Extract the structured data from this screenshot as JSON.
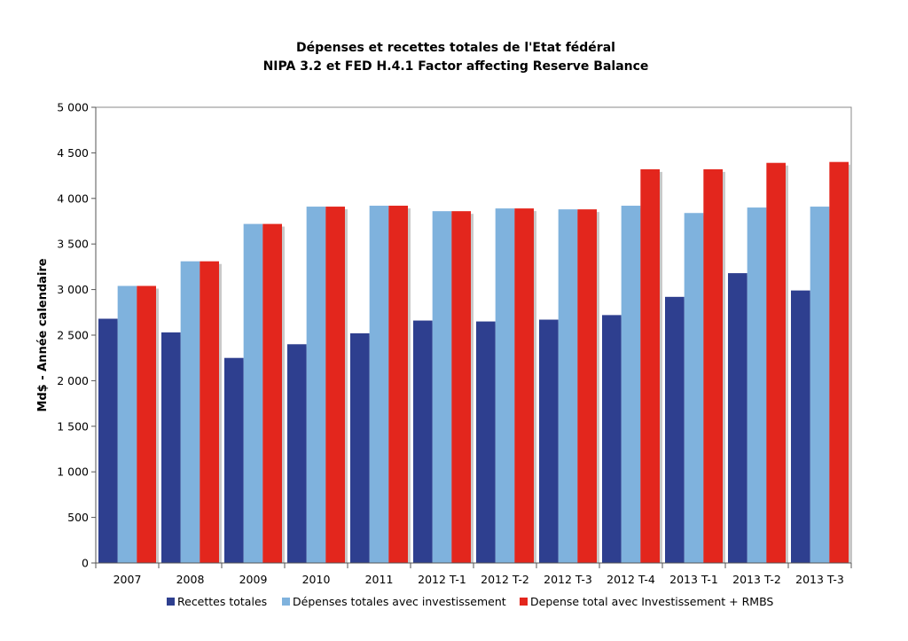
{
  "chart_data": {
    "type": "bar",
    "title": "Dépenses et recettes totales de l'Etat fédéral",
    "subtitle": "NIPA 3.2 et FED H.4.1 Factor affecting Reserve Balance",
    "xlabel": "",
    "ylabel": "Md$ - Année calendaire",
    "ylim": [
      0,
      5000
    ],
    "yticks": [
      0,
      500,
      1000,
      1500,
      2000,
      2500,
      3000,
      3500,
      4000,
      4500,
      5000
    ],
    "ytick_labels": [
      "0",
      "500",
      "1 000",
      "1 500",
      "2 000",
      "2 500",
      "3 000",
      "3 500",
      "4 000",
      "4 500",
      "5 000"
    ],
    "grid": false,
    "legend_position": "bottom",
    "categories": [
      "2007",
      "2008",
      "2009",
      "2010",
      "2011",
      "2012 T-1",
      "2012 T-2",
      "2012 T-3",
      "2012 T-4",
      "2013 T-1",
      "2013 T-2",
      "2013 T-3"
    ],
    "series": [
      {
        "name": "Recettes totales",
        "color": "#2e3f8f",
        "values": [
          2680,
          2530,
          2250,
          2400,
          2520,
          2660,
          2650,
          2670,
          2720,
          2920,
          3180,
          2990
        ]
      },
      {
        "name": "Dépenses totales avec investissement",
        "color": "#7fb2dd",
        "values": [
          3040,
          3310,
          3720,
          3910,
          3920,
          3860,
          3890,
          3880,
          3920,
          3840,
          3900,
          3910
        ]
      },
      {
        "name": "Depense total avec Investissement + RMBS",
        "color": "#e3261d",
        "values": [
          3040,
          3310,
          3720,
          3910,
          3920,
          3860,
          3890,
          3880,
          4320,
          4320,
          4390,
          4400
        ]
      }
    ]
  }
}
